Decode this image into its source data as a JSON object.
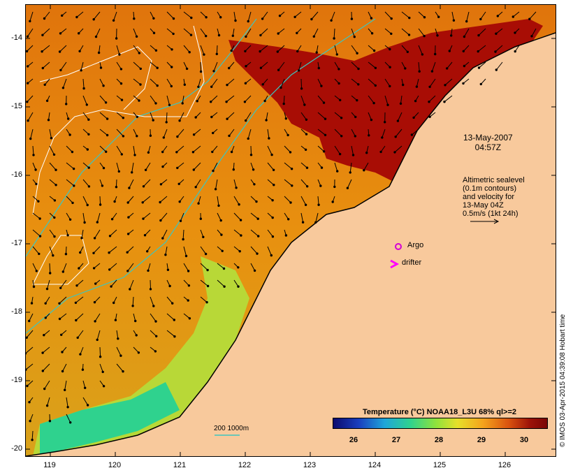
{
  "map": {
    "lat_ticks": [
      "-14",
      "-15",
      "-16",
      "-17",
      "-18",
      "-19",
      "-20"
    ],
    "lon_ticks": [
      "119",
      "120",
      "121",
      "122",
      "123",
      "124",
      "125",
      "126"
    ],
    "timestamp": [
      "13-May-2007",
      "04:57Z"
    ],
    "altimetry_note": [
      "Altimetric sealevel",
      "(0.1m contours)",
      "and velocity for",
      "13-May 04Z",
      "0.5m/s (1kt 24h)"
    ],
    "argo_label": "Argo",
    "drifter_label": "drifter",
    "scale_label": "200  1000m",
    "colorbar": {
      "title": "Temperature (°C) NOAA18_L3U 68% ql>=2",
      "labels": [
        "26",
        "27",
        "28",
        "29",
        "30"
      ]
    },
    "watermark": "© IMOS 03-Apr-2015 04:39:08 Hobart time",
    "colors": {
      "land": "#f8c99c",
      "warm": "#a80d05",
      "mid": "#e8820f",
      "cool": "#9ee033",
      "cold": "#1fb2c8",
      "isobath": "#3cc6c0",
      "contour": "#ffffff",
      "argo": "#d400d4",
      "drifter": "#ff00ff"
    }
  }
}
